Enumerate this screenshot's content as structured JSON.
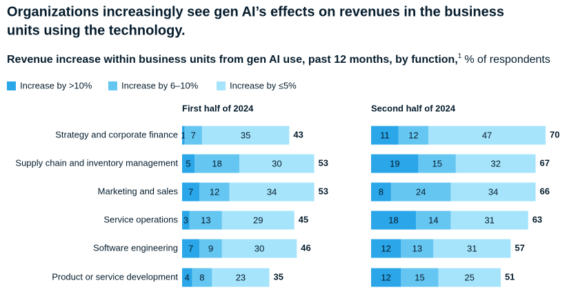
{
  "title_lines": [
    "Organizations increasingly see gen AI’s effects on revenues in the business",
    "units using the technology."
  ],
  "subtitle": "Revenue increase within business units from gen AI use, past 12 months, by function,",
  "subtitle_footnote": "1",
  "unit_note": "% of respondents",
  "chart_data": [
    {
      "type": "stacked-bar-horizontal",
      "title": "First half of 2024",
      "categories": [
        "Strategy and corporate finance",
        "Supply chain and inventory management",
        "Marketing and sales",
        "Service operations",
        "Software engineering",
        "Product or service development"
      ],
      "series": [
        {
          "name": "Increase by >10%",
          "color": "#2aa6e9",
          "values": [
            1,
            5,
            7,
            3,
            7,
            4
          ]
        },
        {
          "name": "Increase by 6–10%",
          "color": "#66c6f2",
          "values": [
            7,
            18,
            12,
            13,
            9,
            8
          ]
        },
        {
          "name": "Increase by ≤5%",
          "color": "#a6e4fb",
          "values": [
            35,
            30,
            34,
            29,
            30,
            23
          ]
        }
      ],
      "totals": [
        43,
        53,
        53,
        45,
        46,
        35
      ],
      "xlim": [
        0,
        70
      ]
    },
    {
      "type": "stacked-bar-horizontal",
      "title": "Second half of 2024",
      "series": [
        {
          "color": "#2aa6e9",
          "values": [
            11,
            19,
            8,
            18,
            12,
            12
          ]
        },
        {
          "color": "#66c6f2",
          "values": [
            12,
            15,
            24,
            14,
            13,
            15
          ]
        },
        {
          "color": "#a6e4fb",
          "values": [
            47,
            32,
            34,
            31,
            31,
            25
          ]
        }
      ],
      "totals": [
        70,
        67,
        66,
        63,
        57,
        51
      ],
      "xlim": [
        0,
        70
      ]
    }
  ]
}
